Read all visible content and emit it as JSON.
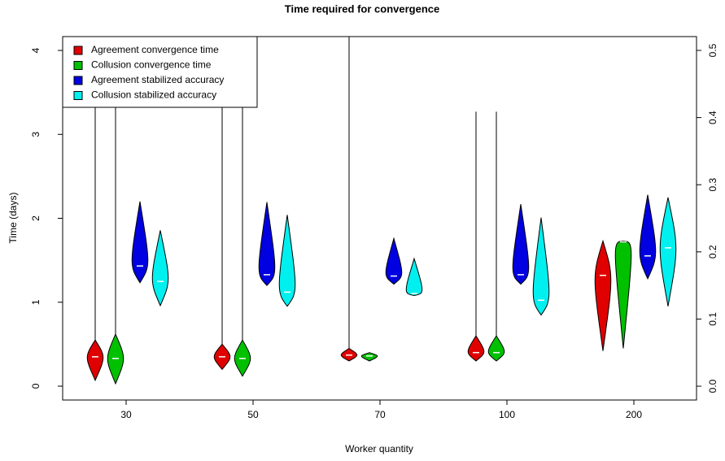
{
  "chart_data": {
    "type": "violin",
    "title": "Time required for convergence",
    "x_label": "Worker quantity",
    "y_label": "Time (days)",
    "categories": [
      "30",
      "50",
      "70",
      "100",
      "200"
    ],
    "ylim": [
      -0.165,
      4.165
    ],
    "yticks": [
      0,
      1,
      2,
      3,
      4
    ],
    "y2lim": [
      -0.0206,
      0.5206
    ],
    "y2ticks": [
      {
        "value": 0,
        "label": "0.0"
      },
      0.1,
      0.2,
      0.3,
      0.4,
      0.5
    ],
    "legend": "top-left",
    "series": [
      {
        "name": "Agreement convergence time",
        "color": "#e00000",
        "mins": [
          0.07,
          0.2,
          0.3,
          0.3,
          0.42
        ],
        "maxs": [
          0.55,
          0.5,
          0.45,
          0.6,
          1.73
        ],
        "values": [
          0.35,
          0.35,
          0.37,
          0.4,
          1.32
        ],
        "whisker_max": [
          4.2,
          4.2,
          4.2,
          3.27,
          1.73
        ]
      },
      {
        "name": "Collusion convergence time",
        "color": "#00c000",
        "mins": [
          0.03,
          0.12,
          0.3,
          0.3,
          0.45
        ],
        "maxs": [
          0.62,
          0.55,
          0.4,
          0.6,
          1.73
        ],
        "values": [
          0.33,
          0.33,
          0.36,
          0.4,
          1.72
        ],
        "whisker_max": [
          4.2,
          4.2,
          0.4,
          3.27,
          1.73
        ]
      },
      {
        "name": "Agreement stabilized accuracy",
        "color": "#0000e0",
        "axis": "y2",
        "mins": [
          0.154,
          0.15,
          0.152,
          0.152,
          0.16
        ],
        "maxs": [
          0.275,
          0.274,
          0.22,
          0.271,
          0.285
        ],
        "values": [
          0.179,
          0.166,
          0.164,
          0.166,
          0.194
        ],
        "whisker_max": [
          0.275,
          0.274,
          0.22,
          0.271,
          0.285
        ]
      },
      {
        "name": "Collusion stabilized accuracy",
        "color": "#00f0f0",
        "axis": "y2",
        "mins": [
          0.12,
          0.119,
          0.135,
          0.106,
          0.119
        ],
        "maxs": [
          0.232,
          0.255,
          0.19,
          0.251,
          0.281
        ],
        "values": [
          0.156,
          0.14,
          0.138,
          0.128,
          0.206
        ],
        "whisker_max": [
          0.232,
          0.255,
          0.19,
          0.251,
          0.281
        ]
      }
    ]
  }
}
